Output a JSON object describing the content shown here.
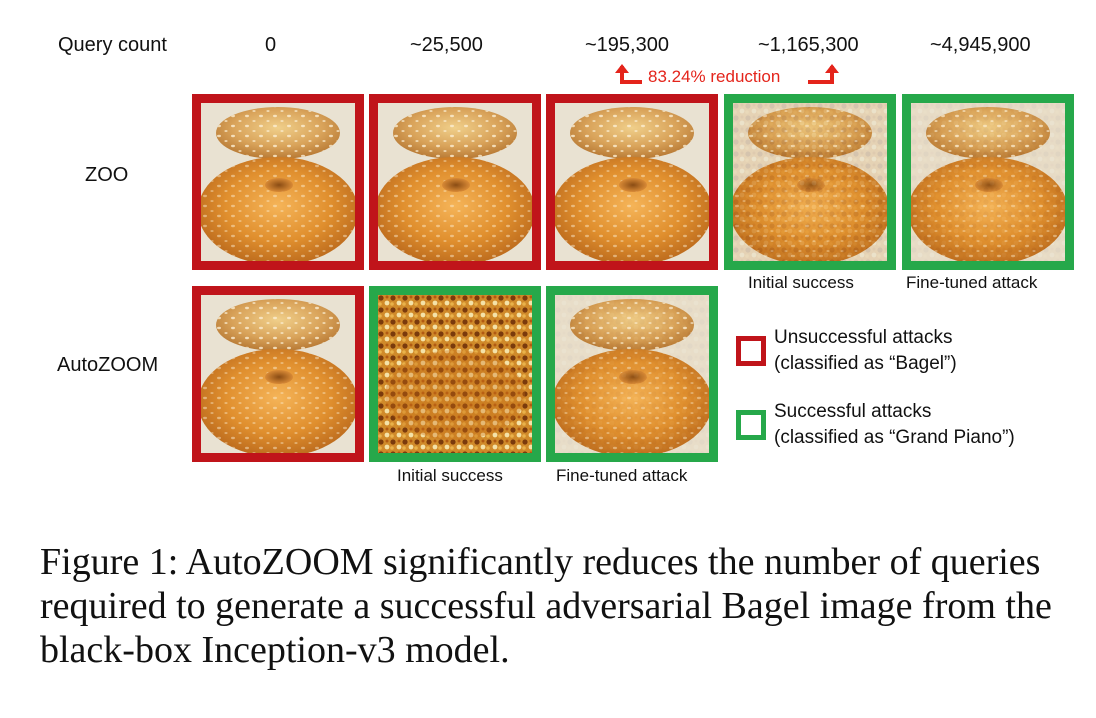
{
  "header": {
    "query_count_label": "Query count",
    "counts": [
      "0",
      "~25,500",
      "~195,300",
      "~1,165,300",
      "~4,945,900"
    ]
  },
  "reduction": {
    "label": "83.24% reduction"
  },
  "rows": {
    "zoo_label": "ZOO",
    "autozoom_label": "AutoZOOM"
  },
  "captions": {
    "zoo_initial": "Initial success",
    "zoo_finetuned": "Fine-tuned attack",
    "autozoom_initial": "Initial success",
    "autozoom_finetuned": "Fine-tuned attack"
  },
  "legend": {
    "unsuccessful_line1": "Unsuccessful attacks",
    "unsuccessful_line2": "(classified as “Bagel”)",
    "successful_line1": "Successful attacks",
    "successful_line2": "(classified as “Grand Piano”)"
  },
  "colors": {
    "unsuccessful": "#c0141a",
    "successful": "#26a84a",
    "reduction": "#e4241b"
  },
  "figure_caption": "Figure 1: AutoZOOM significantly reduces the number of queries required to generate a successful adversarial Bagel image from the black-box Inception-v3 model."
}
